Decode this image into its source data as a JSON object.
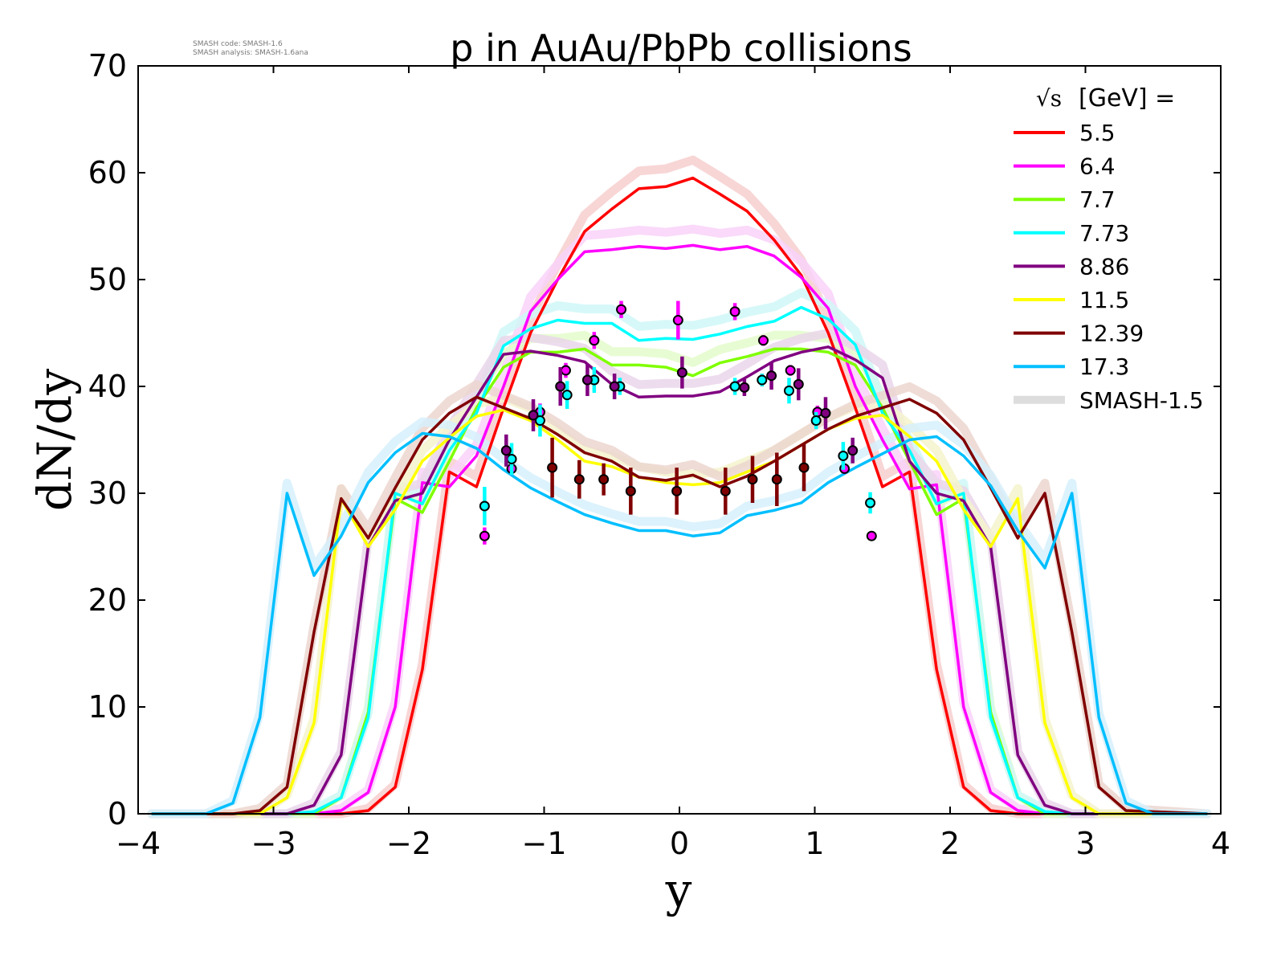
{
  "smash_info": {
    "code_label": "SMASH code:",
    "code_value": "SMASH-1.6",
    "analysis_label": "SMASH analysis:",
    "analysis_value": "SMASH-1.6ana"
  },
  "chart_data": {
    "type": "line",
    "title": "p in AuAu/PbPb collisions",
    "xlabel": "y",
    "ylabel": "dN/dy",
    "xlim": [
      -4,
      4
    ],
    "ylim": [
      0,
      70
    ],
    "xticks": [
      "−4",
      "−3",
      "−2",
      "−1",
      "0",
      "1",
      "2",
      "3",
      "4"
    ],
    "yticks": [
      "0",
      "10",
      "20",
      "30",
      "40",
      "50",
      "60",
      "70"
    ],
    "legend": {
      "title_sqrt": "√s",
      "title_rest": "[GeV] =",
      "placement": "top-right",
      "reference_label": "SMASH-1.5",
      "reference_color": "#dddddd"
    },
    "series": [
      {
        "name": "5.5",
        "color": "#ff0000",
        "shade": "#f7cfcf",
        "x": [
          -3.9,
          -2.5,
          -2.3,
          -2.1,
          -1.9,
          -1.7,
          -1.5,
          -1.3,
          -1.1,
          -0.9,
          -0.7,
          -0.5,
          -0.3,
          -0.1,
          0.1,
          0.3,
          0.5,
          0.7,
          0.9,
          1.1,
          1.3,
          1.5,
          1.7,
          1.9,
          2.1,
          2.3,
          2.5,
          3.9
        ],
        "y": [
          0,
          0,
          0.3,
          2.5,
          13.5,
          32,
          30.6,
          38,
          45,
          50,
          54.5,
          56.6,
          58.5,
          58.7,
          59.5,
          58,
          56.4,
          53.7,
          50.4,
          45,
          38,
          30.6,
          32,
          13.5,
          2.5,
          0.3,
          0,
          0
        ]
      },
      {
        "name": "6.4",
        "color": "#ff00ff",
        "shade": "#f9d2f9",
        "x": [
          -3.9,
          -2.7,
          -2.5,
          -2.3,
          -2.1,
          -1.9,
          -1.7,
          -1.5,
          -1.3,
          -1.1,
          -0.9,
          -0.7,
          -0.5,
          -0.3,
          -0.1,
          0.1,
          0.3,
          0.5,
          0.7,
          0.9,
          1.1,
          1.3,
          1.5,
          1.7,
          1.9,
          2.1,
          2.3,
          2.5,
          2.7,
          3.9
        ],
        "y": [
          0,
          0,
          0.3,
          2,
          10,
          31,
          30.6,
          33.5,
          40,
          47,
          50,
          52.6,
          52.8,
          53.1,
          52.9,
          53.2,
          52.8,
          53.1,
          52.2,
          50.2,
          47.3,
          40,
          35,
          30.4,
          30.8,
          10,
          2,
          0.3,
          0,
          0
        ]
      },
      {
        "name": "7.7",
        "color": "#7fff00",
        "shade": "#e4fbcb",
        "x": [
          -3.9,
          -2.7,
          -2.5,
          -2.3,
          -2.1,
          -1.9,
          -1.7,
          -1.5,
          -1.3,
          -1.1,
          -0.9,
          -0.7,
          -0.5,
          -0.3,
          -0.1,
          0.1,
          0.3,
          0.5,
          0.7,
          0.9,
          1.1,
          1.3,
          1.5,
          1.7,
          1.9,
          2.1,
          2.3,
          2.5,
          2.7,
          3.9
        ],
        "y": [
          0,
          0,
          1.5,
          9.5,
          29.5,
          28.2,
          33,
          38,
          41.8,
          43.2,
          43.2,
          43.5,
          42,
          42,
          41.8,
          41,
          42.2,
          42.8,
          43.5,
          43.5,
          43.2,
          42,
          38,
          33,
          28,
          29.5,
          9.5,
          1.5,
          0,
          0
        ]
      },
      {
        "name": "7.73",
        "color": "#00ffff",
        "shade": "#d0f7f7",
        "x": [
          -3.9,
          -2.9,
          -2.7,
          -2.5,
          -2.3,
          -2.1,
          -1.9,
          -1.7,
          -1.5,
          -1.3,
          -1.1,
          -0.9,
          -0.7,
          -0.5,
          -0.3,
          -0.1,
          0.1,
          0.3,
          0.5,
          0.7,
          0.9,
          1.1,
          1.3,
          1.5,
          1.7,
          1.9,
          2.1,
          2.3,
          2.5,
          2.7,
          2.9,
          3.9
        ],
        "y": [
          0,
          0,
          0.2,
          1.5,
          9,
          30,
          29,
          34,
          37.5,
          43.8,
          45.4,
          46.2,
          45.9,
          45.9,
          44.3,
          44.5,
          44.4,
          44.9,
          45.6,
          46.1,
          47.4,
          46.3,
          43.9,
          37.5,
          34,
          29,
          30,
          9,
          1.5,
          0.2,
          0,
          0
        ]
      },
      {
        "name": "8.86",
        "color": "#800080",
        "shade": "#ead6ea",
        "x": [
          -3.9,
          -2.9,
          -2.7,
          -2.5,
          -2.3,
          -2.1,
          -1.9,
          -1.7,
          -1.5,
          -1.3,
          -1.1,
          -0.9,
          -0.7,
          -0.5,
          -0.3,
          -0.1,
          0.1,
          0.3,
          0.5,
          0.7,
          0.9,
          1.1,
          1.3,
          1.5,
          1.7,
          1.9,
          2.1,
          2.3,
          2.5,
          2.7,
          2.9,
          3.9
        ],
        "y": [
          0,
          0,
          0.8,
          5.5,
          25,
          29.3,
          30,
          35,
          39,
          43,
          43.3,
          42.9,
          42.3,
          40.2,
          39,
          39.1,
          39.1,
          39.5,
          40.9,
          42.4,
          43.2,
          43.7,
          42.5,
          40.8,
          33,
          30,
          29.3,
          25,
          5.5,
          0.8,
          0,
          0
        ]
      },
      {
        "name": "11.5",
        "color": "#ffff00",
        "shade": "#f5f3cc",
        "x": [
          -3.9,
          -3.1,
          -2.9,
          -2.7,
          -2.5,
          -2.3,
          -2.1,
          -1.9,
          -1.7,
          -1.5,
          -1.3,
          -1.1,
          -0.9,
          -0.7,
          -0.5,
          -0.3,
          -0.1,
          0.1,
          0.3,
          0.5,
          0.7,
          0.9,
          1.1,
          1.3,
          1.5,
          1.7,
          1.9,
          2.1,
          2.3,
          2.5,
          2.7,
          2.9,
          3.1,
          3.9
        ],
        "y": [
          0,
          0,
          1.5,
          8.5,
          29.5,
          25,
          28.5,
          33,
          35.2,
          37.2,
          37.8,
          36.8,
          35,
          33,
          32.5,
          31.5,
          31,
          30.8,
          31,
          32,
          33,
          34.5,
          36,
          37,
          37.3,
          35.3,
          33,
          28.5,
          25,
          29.5,
          8.5,
          1.5,
          0,
          0
        ]
      },
      {
        "name": "12.39",
        "color": "#800000",
        "shade": "#ecd6cf",
        "x": [
          -3.9,
          -3.3,
          -3.1,
          -2.9,
          -2.7,
          -2.5,
          -2.3,
          -2.1,
          -1.9,
          -1.7,
          -1.5,
          -1.3,
          -1.1,
          -0.9,
          -0.7,
          -0.5,
          -0.3,
          -0.1,
          0.1,
          0.3,
          0.5,
          0.7,
          0.9,
          1.1,
          1.3,
          1.5,
          1.7,
          1.9,
          2.1,
          2.3,
          2.5,
          2.7,
          2.9,
          3.1,
          3.3,
          3.9
        ],
        "y": [
          0,
          0,
          0.3,
          2.5,
          17,
          29.5,
          25.8,
          30.5,
          35,
          37.5,
          39,
          38,
          37,
          35.5,
          33.8,
          33,
          31.5,
          31.2,
          31.7,
          30.6,
          31.6,
          33,
          34.5,
          36,
          37.2,
          38,
          38.8,
          37.5,
          35,
          30.5,
          25.8,
          30,
          17,
          2.5,
          0.3,
          0
        ]
      },
      {
        "name": "17.3",
        "color": "#00bfff",
        "shade": "#d6f0fb",
        "x": [
          -3.9,
          -3.5,
          -3.3,
          -3.1,
          -2.9,
          -2.7,
          -2.5,
          -2.3,
          -2.1,
          -1.9,
          -1.7,
          -1.5,
          -1.3,
          -1.1,
          -0.9,
          -0.7,
          -0.5,
          -0.3,
          -0.1,
          0.1,
          0.3,
          0.5,
          0.7,
          0.9,
          1.1,
          1.3,
          1.5,
          1.7,
          1.9,
          2.1,
          2.3,
          2.5,
          2.7,
          2.9,
          3.1,
          3.3,
          3.5,
          3.9
        ],
        "y": [
          0,
          0,
          1,
          9,
          30,
          22.3,
          26,
          31,
          33.8,
          35.6,
          35.3,
          34.2,
          32.2,
          30.5,
          29.2,
          28,
          27.2,
          26.5,
          26.5,
          26,
          26.3,
          27.9,
          28.4,
          29.1,
          31,
          32.4,
          33.7,
          35,
          35.3,
          33.5,
          30.7,
          26.5,
          23,
          30,
          9,
          1,
          0,
          0
        ]
      }
    ],
    "data_points": [
      {
        "series": "6.4",
        "x": -1.44,
        "y": 26.0,
        "err": 0.8
      },
      {
        "series": "6.4",
        "x": -1.24,
        "y": 32.3,
        "err": 0.6
      },
      {
        "series": "6.4",
        "x": -1.03,
        "y": 37.6,
        "err": 0.8
      },
      {
        "series": "6.4",
        "x": -0.84,
        "y": 41.5,
        "err": 0.7
      },
      {
        "series": "6.4",
        "x": -0.63,
        "y": 44.3,
        "err": 0.8
      },
      {
        "series": "6.4",
        "x": -0.43,
        "y": 47.2,
        "err": 0.8
      },
      {
        "series": "6.4",
        "x": -0.01,
        "y": 46.2,
        "err": 1.8
      },
      {
        "series": "6.4",
        "x": 0.41,
        "y": 47.0,
        "err": 0.8
      },
      {
        "series": "6.4",
        "x": 0.62,
        "y": 44.3,
        "err": 0.5
      },
      {
        "series": "6.4",
        "x": 0.82,
        "y": 41.5,
        "err": 0.5
      },
      {
        "series": "6.4",
        "x": 1.02,
        "y": 37.6,
        "err": 0.6
      },
      {
        "series": "6.4",
        "x": 1.22,
        "y": 32.3,
        "err": 0.5
      },
      {
        "series": "6.4",
        "x": 1.42,
        "y": 26.0,
        "err": 0.4
      },
      {
        "series": "7.73",
        "x": -1.44,
        "y": 28.8,
        "err": 1.8
      },
      {
        "series": "7.73",
        "x": -1.24,
        "y": 33.2,
        "err": 1.5
      },
      {
        "series": "7.73",
        "x": -1.03,
        "y": 36.8,
        "err": 1.5
      },
      {
        "series": "7.73",
        "x": -0.83,
        "y": 39.2,
        "err": 1.3
      },
      {
        "series": "7.73",
        "x": -0.63,
        "y": 40.6,
        "err": 1.2
      },
      {
        "series": "7.73",
        "x": -0.44,
        "y": 40.0,
        "err": 0.8
      },
      {
        "series": "7.73",
        "x": 0.41,
        "y": 40.0,
        "err": 0.8
      },
      {
        "series": "7.73",
        "x": 0.61,
        "y": 40.6,
        "err": 0.6
      },
      {
        "series": "7.73",
        "x": 0.81,
        "y": 39.6,
        "err": 1.2
      },
      {
        "series": "7.73",
        "x": 1.01,
        "y": 36.8,
        "err": 0.8
      },
      {
        "series": "7.73",
        "x": 1.21,
        "y": 33.5,
        "err": 1.3
      },
      {
        "series": "7.73",
        "x": 1.41,
        "y": 29.1,
        "err": 1.0
      },
      {
        "series": "8.86",
        "x": -1.28,
        "y": 34.0,
        "err": 1.5
      },
      {
        "series": "8.86",
        "x": -1.08,
        "y": 37.3,
        "err": 1.5
      },
      {
        "series": "8.86",
        "x": -0.88,
        "y": 40.0,
        "err": 1.8
      },
      {
        "series": "8.86",
        "x": -0.68,
        "y": 40.6,
        "err": 1.5
      },
      {
        "series": "8.86",
        "x": -0.48,
        "y": 40.0,
        "err": 1.2
      },
      {
        "series": "8.86",
        "x": 0.02,
        "y": 41.3,
        "err": 1.5
      },
      {
        "series": "8.86",
        "x": 0.48,
        "y": 39.9,
        "err": 0.8
      },
      {
        "series": "8.86",
        "x": 0.68,
        "y": 41.0,
        "err": 1.3
      },
      {
        "series": "8.86",
        "x": 0.88,
        "y": 40.2,
        "err": 1.5
      },
      {
        "series": "8.86",
        "x": 1.08,
        "y": 37.5,
        "err": 1.5
      },
      {
        "series": "8.86",
        "x": 1.28,
        "y": 34.0,
        "err": 1.2
      },
      {
        "series": "12.39",
        "x": -0.94,
        "y": 32.4,
        "err": 2.8
      },
      {
        "series": "12.39",
        "x": -0.74,
        "y": 31.3,
        "err": 1.8
      },
      {
        "series": "12.39",
        "x": -0.56,
        "y": 31.3,
        "err": 1.5
      },
      {
        "series": "12.39",
        "x": -0.36,
        "y": 30.2,
        "err": 2.2
      },
      {
        "series": "12.39",
        "x": -0.02,
        "y": 30.2,
        "err": 2.2
      },
      {
        "series": "12.39",
        "x": 0.34,
        "y": 30.2,
        "err": 2.2
      },
      {
        "series": "12.39",
        "x": 0.54,
        "y": 31.3,
        "err": 2.2
      },
      {
        "series": "12.39",
        "x": 0.72,
        "y": 31.3,
        "err": 2.5
      },
      {
        "series": "12.39",
        "x": 0.92,
        "y": 32.4,
        "err": 2.2
      }
    ]
  }
}
